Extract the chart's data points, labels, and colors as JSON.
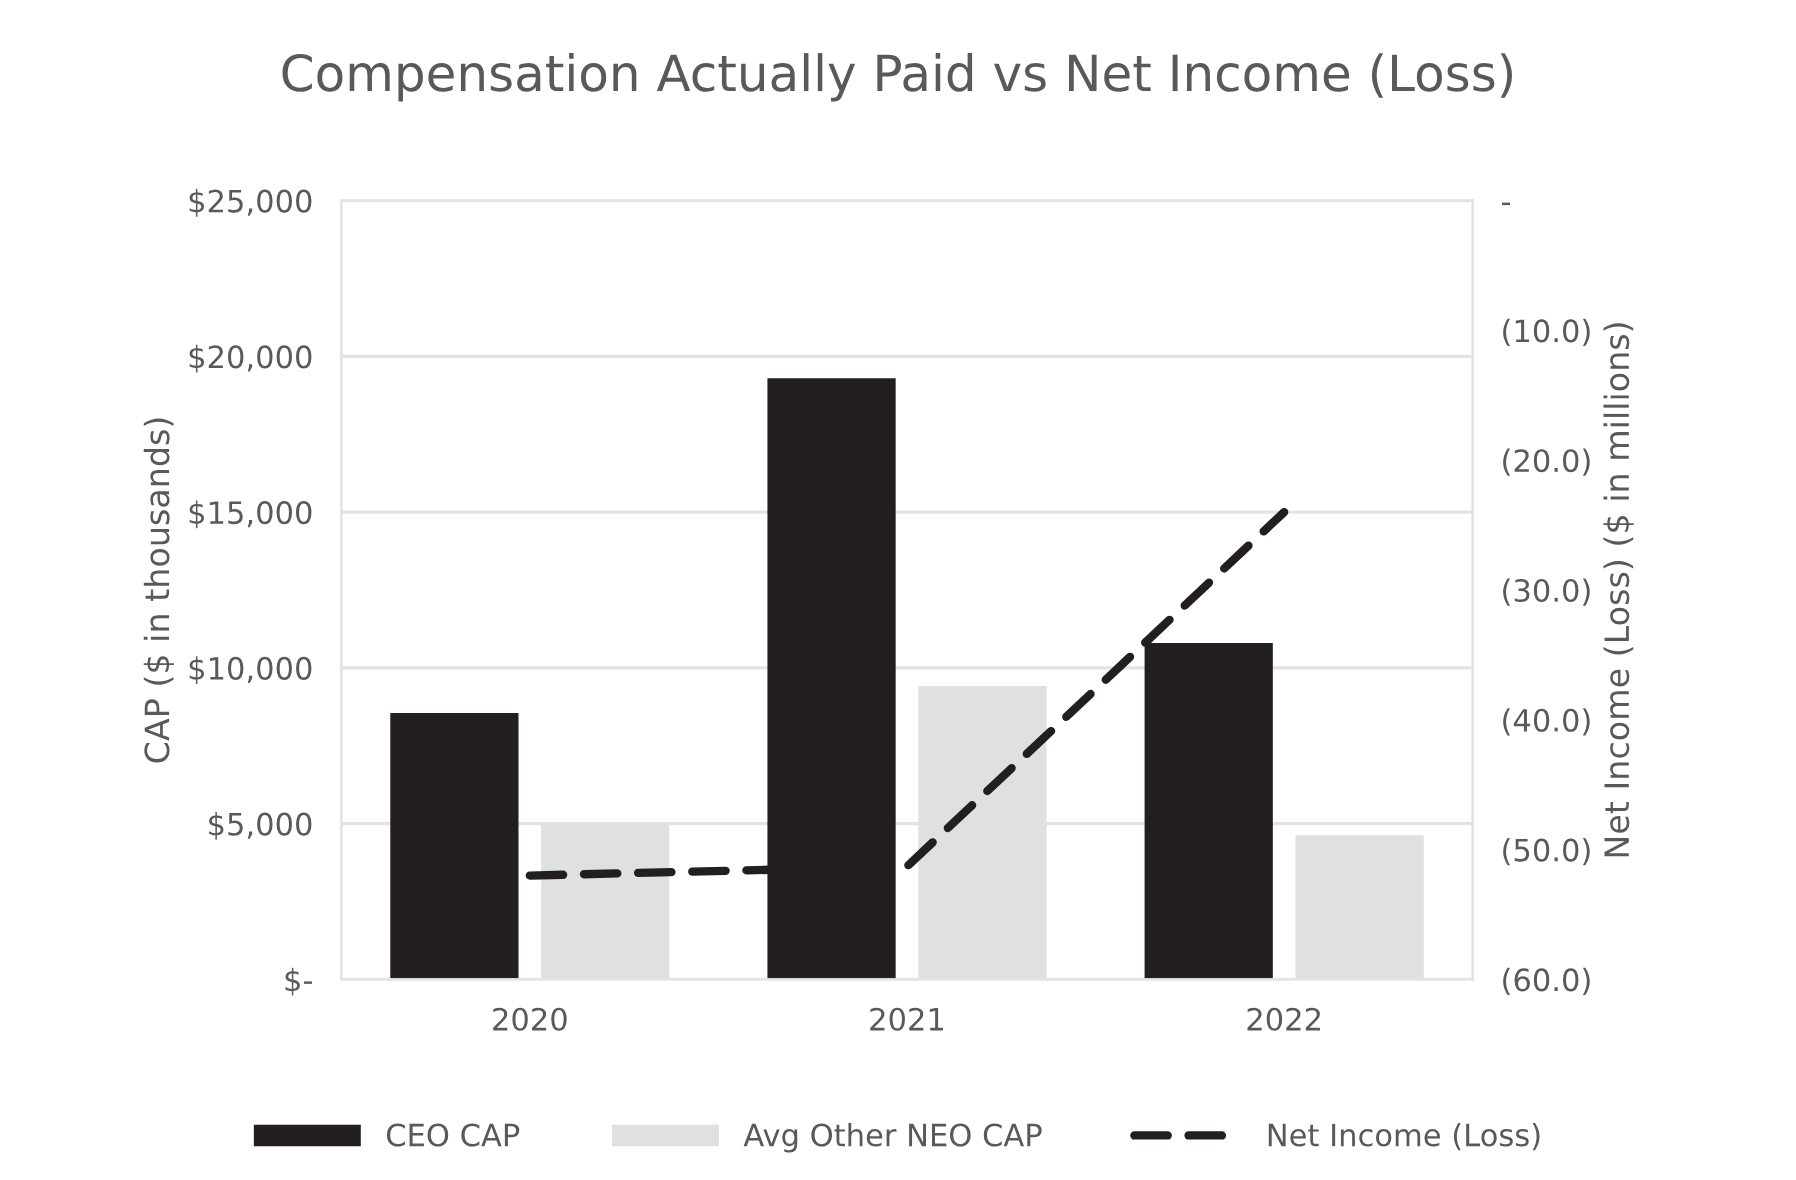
{
  "chart_data": {
    "type": "bar",
    "title": "Compensation Actually Paid vs Net Income (Loss)",
    "ylabel": "CAP ($ in thousands)",
    "y2label": "Net Income (Loss) ($ in millions)",
    "categories": [
      "2020",
      "2021",
      "2022"
    ],
    "series": [
      {
        "name": "CEO CAP",
        "color": "#231f20",
        "values": [
          8550,
          19300,
          10800
        ]
      },
      {
        "name": "Avg Other NEO CAP",
        "color": "#dfe0e2",
        "values": [
          5000,
          9420,
          4630
        ]
      },
      {
        "name": "Net Income (Loss)",
        "type": "line",
        "axis": "y2",
        "color": "#231f20",
        "line_style": "dashed",
        "values": [
          -52.0,
          -51.3,
          -24.0
        ]
      }
    ],
    "ylim": [
      0,
      25000
    ],
    "yticks": [
      {
        "value": 0,
        "label": "$-"
      },
      {
        "value": 5000,
        "label": "$5,000"
      },
      {
        "value": 10000,
        "label": "$10,000"
      },
      {
        "value": 15000,
        "label": "$15,000"
      },
      {
        "value": 20000,
        "label": "$20,000"
      },
      {
        "value": 25000,
        "label": "$25,000"
      }
    ],
    "y2lim": [
      -60,
      0
    ],
    "y2ticks": [
      {
        "value": -60,
        "label": "(60.0)"
      },
      {
        "value": -50,
        "label": "(50.0)"
      },
      {
        "value": -40,
        "label": "(40.0)"
      },
      {
        "value": -30,
        "label": "(30.0)"
      },
      {
        "value": -20,
        "label": "(20.0)"
      },
      {
        "value": -10,
        "label": "(10.0)"
      },
      {
        "value": 0,
        "label": "-"
      }
    ],
    "grid": "y",
    "legend": "bottom"
  }
}
